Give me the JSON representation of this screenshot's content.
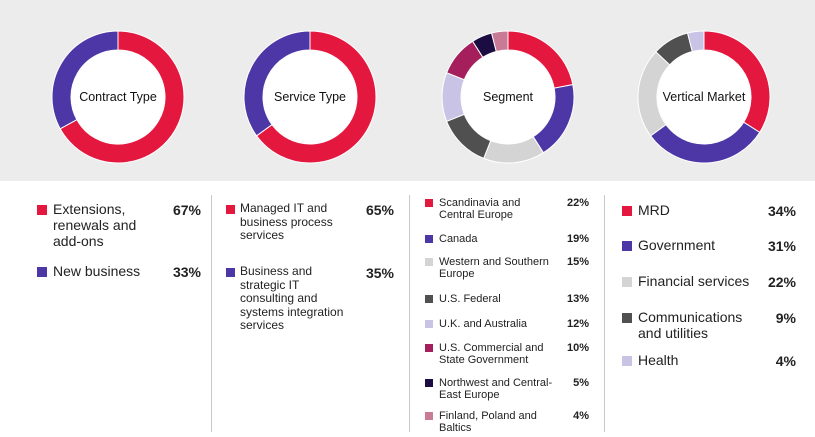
{
  "colors": {
    "red": "#e4173e",
    "purple": "#4d36a6",
    "light_gray": "#d4d4d4",
    "dark_gray": "#505050",
    "lavender": "#c9c3e6",
    "magenta": "#a51f5d",
    "navy": "#1b0d42",
    "pink": "#c97a97"
  },
  "chart_data": [
    {
      "type": "pie",
      "title": "Contract Type",
      "series": [
        {
          "name": "Extensions, renewals and add-ons",
          "value": 67,
          "label": "67%",
          "color": "#e4173e"
        },
        {
          "name": "New business",
          "value": 33,
          "label": "33%",
          "color": "#4d36a6"
        }
      ]
    },
    {
      "type": "pie",
      "title": "Service Type",
      "series": [
        {
          "name": "Managed IT and business process services",
          "value": 65,
          "label": "65%",
          "color": "#e4173e"
        },
        {
          "name": "Business and strategic IT consulting and systems integration services",
          "value": 35,
          "label": "35%",
          "color": "#4d36a6"
        }
      ]
    },
    {
      "type": "pie",
      "title": "Segment",
      "series": [
        {
          "name": "Scandinavia and Central Europe",
          "value": 22,
          "label": "22%",
          "color": "#e4173e"
        },
        {
          "name": "Canada",
          "value": 19,
          "label": "19%",
          "color": "#4d36a6"
        },
        {
          "name": "Western and Southern Europe",
          "value": 15,
          "label": "15%",
          "color": "#d4d4d4"
        },
        {
          "name": "U.S. Federal",
          "value": 13,
          "label": "13%",
          "color": "#505050"
        },
        {
          "name": "U.K. and Australia",
          "value": 12,
          "label": "12%",
          "color": "#c9c3e6"
        },
        {
          "name": "U.S. Commercial and State Government",
          "value": 10,
          "label": "10%",
          "color": "#a51f5d"
        },
        {
          "name": "Northwest and Central-East Europe",
          "value": 5,
          "label": "5%",
          "color": "#1b0d42"
        },
        {
          "name": "Finland, Poland and Baltics",
          "value": 4,
          "label": "4%",
          "color": "#c97a97"
        }
      ]
    },
    {
      "type": "pie",
      "title": "Vertical Market",
      "series": [
        {
          "name": "MRD",
          "value": 34,
          "label": "34%",
          "color": "#e4173e"
        },
        {
          "name": "Government",
          "value": 31,
          "label": "31%",
          "color": "#4d36a6"
        },
        {
          "name": "Financial services",
          "value": 22,
          "label": "22%",
          "color": "#d4d4d4"
        },
        {
          "name": "Communications and utilities",
          "value": 9,
          "label": "9%",
          "color": "#505050"
        },
        {
          "name": "Health",
          "value": 4,
          "label": "4%",
          "color": "#c9c3e6"
        }
      ]
    }
  ]
}
